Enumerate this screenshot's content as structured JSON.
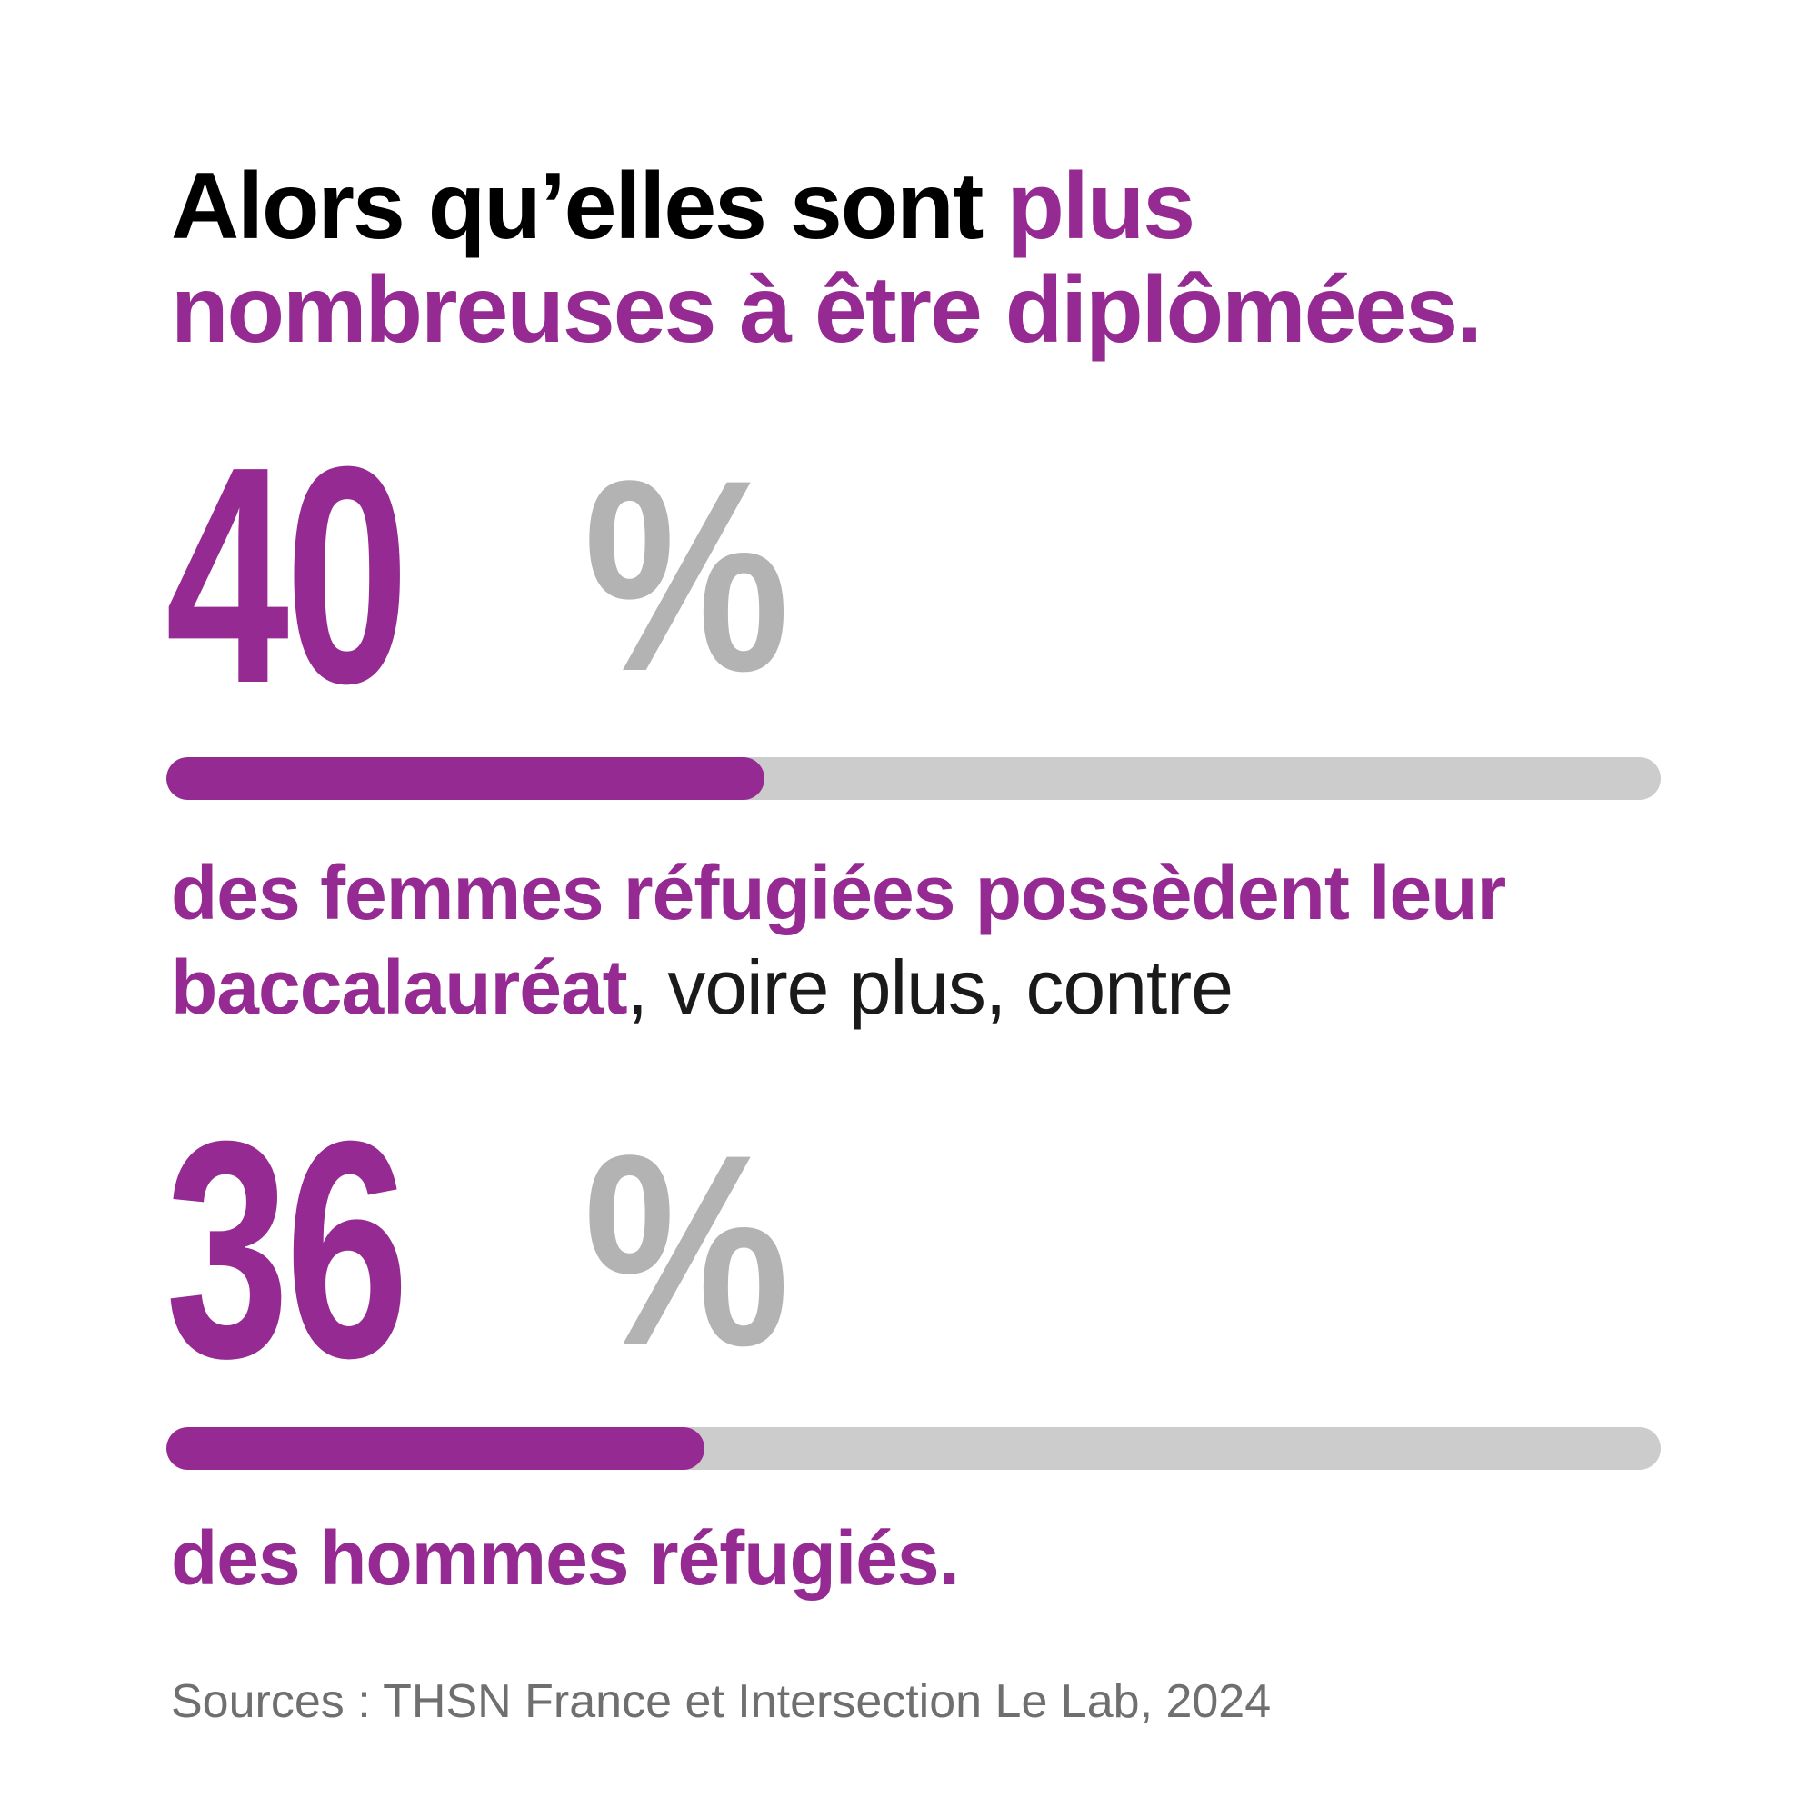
{
  "colors": {
    "accent": "#952a92",
    "percent_sign": "#b3b3b3",
    "track": "#cccccc",
    "source": "#6f6f6f"
  },
  "title": {
    "part1": "Alors qu’elles sont ",
    "part2": "plus",
    "line2": "nombreuses à être diplômées."
  },
  "stats": [
    {
      "value": "40",
      "unit": "%",
      "percent": 40,
      "desc_bold": "des femmes réfugiées possèdent leur",
      "desc_bold2": "baccalauréat",
      "desc_normal": ", voire plus, contre"
    },
    {
      "value": "36",
      "unit": "%",
      "percent": 36,
      "desc_bold": "des hommes réfugiés."
    }
  ],
  "source": "Sources : THSN France et Intersection Le Lab, 2024"
}
